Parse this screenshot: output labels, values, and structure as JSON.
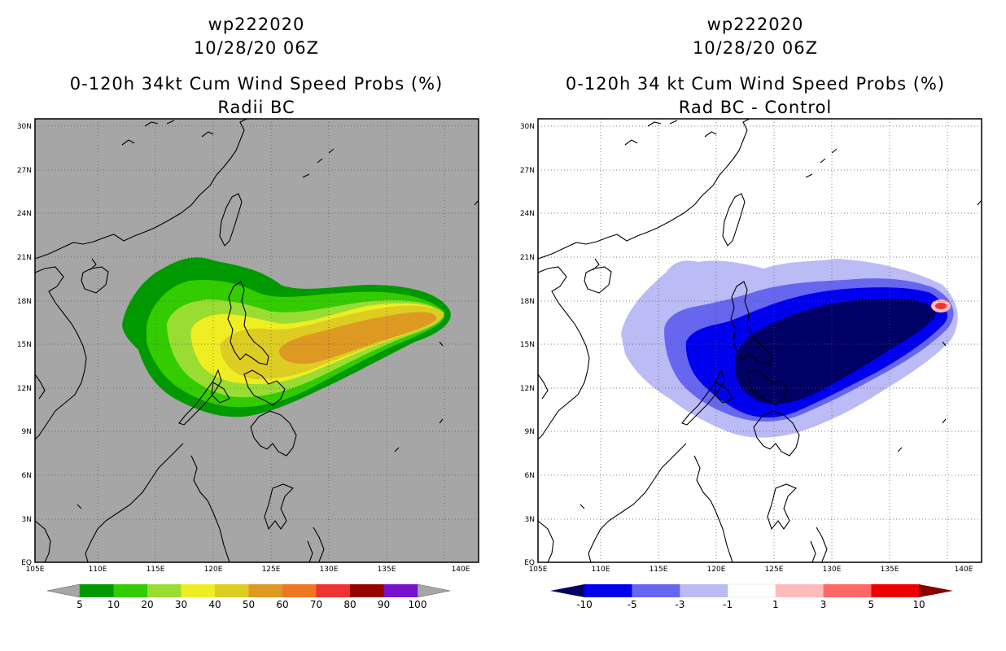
{
  "left_panel": {
    "title_line1": "wp222020",
    "title_line2": "10/28/20 06Z",
    "title_line3": "0-120h 34kt Cum Wind Speed Probs (%)",
    "title_line4": "Radii BC",
    "background": "#a6a6a6",
    "legend": {
      "colors": [
        "#009900",
        "#33cc00",
        "#99dd33",
        "#eeee22",
        "#ddcc22",
        "#dd9922",
        "#ee7722",
        "#ee3333",
        "#990000",
        "#7711cc"
      ],
      "labels": [
        "5",
        "10",
        "20",
        "30",
        "40",
        "50",
        "60",
        "70",
        "80",
        "90",
        "100"
      ]
    }
  },
  "right_panel": {
    "title_line1": "wp222020",
    "title_line2": "10/28/20 06Z",
    "title_line3": "0-120h 34 kt Cum Wind Speed Probs (%)",
    "title_line4": "Rad BC - Control",
    "background": "#ffffff",
    "legend": {
      "colors": [
        "#000066",
        "#0000ee",
        "#6666ee",
        "#bbbbf5",
        "#ffffff",
        "#ffbbbb",
        "#ff6666",
        "#ee0000",
        "#880000"
      ],
      "labels": [
        "-10",
        "-5",
        "-3",
        "-1",
        "1",
        "3",
        "5",
        "10"
      ]
    }
  },
  "axes": {
    "lon_ticks": [
      "105E",
      "110E",
      "115E",
      "120E",
      "125E",
      "130E",
      "135E",
      "140E"
    ],
    "lat_ticks": [
      "EQ",
      "3N",
      "6N",
      "9N",
      "12N",
      "15N",
      "18N",
      "21N",
      "24N",
      "27N",
      "30N"
    ]
  }
}
